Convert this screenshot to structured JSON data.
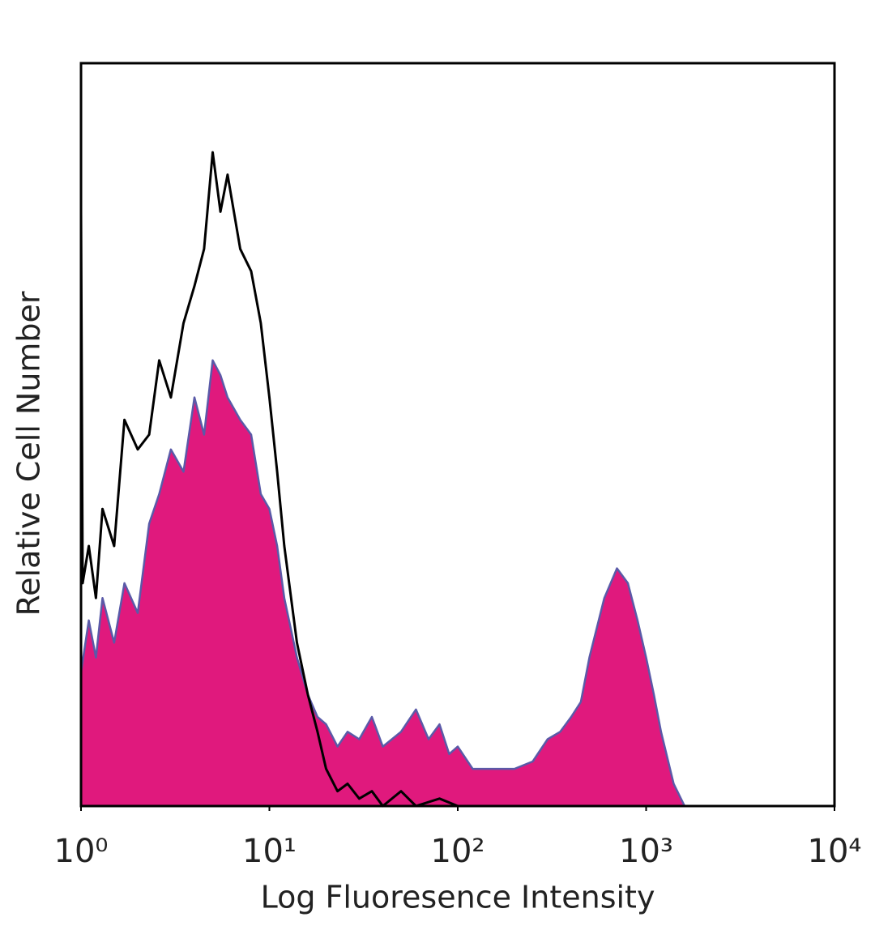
{
  "chart_data": {
    "type": "histogram-overlay",
    "xscale": "log",
    "x_label": "Log Fluoresence Intensity",
    "y_label": "Relative Cell Number",
    "xlim": [
      1,
      10000
    ],
    "ylim": [
      0,
      100
    ],
    "xticks": [
      {
        "value": 1,
        "label": "10⁰"
      },
      {
        "value": 10,
        "label": "10¹"
      },
      {
        "value": 100,
        "label": "10²"
      },
      {
        "value": 1000,
        "label": "10³"
      },
      {
        "value": 10000,
        "label": "10⁴"
      }
    ],
    "series": [
      {
        "fill": "#e0197d",
        "color": "#5a5aa8",
        "filled": true,
        "x": [
          1,
          1.1,
          1.2,
          1.3,
          1.5,
          1.7,
          2,
          2.3,
          2.6,
          3,
          3.5,
          4,
          4.5,
          5,
          5.5,
          6,
          7,
          8,
          9,
          10,
          11,
          12,
          14,
          16,
          18,
          20,
          23,
          26,
          30,
          35,
          40,
          50,
          60,
          70,
          80,
          90,
          100,
          120,
          150,
          200,
          250,
          300,
          350,
          400,
          450,
          500,
          600,
          700,
          800,
          900,
          1000,
          1100,
          1200,
          1400,
          1600
        ],
        "values": [
          18,
          25,
          20,
          28,
          22,
          30,
          26,
          38,
          42,
          48,
          45,
          55,
          50,
          60,
          58,
          55,
          52,
          50,
          42,
          40,
          35,
          28,
          20,
          15,
          12,
          11,
          8,
          10,
          9,
          12,
          8,
          10,
          13,
          9,
          11,
          7,
          8,
          5,
          5,
          5,
          6,
          9,
          10,
          12,
          14,
          20,
          28,
          32,
          30,
          25,
          20,
          15,
          10,
          3,
          0
        ]
      },
      {
        "color": "#000000",
        "filled": false,
        "x": [
          1,
          1.02,
          1.1,
          1.2,
          1.3,
          1.5,
          1.7,
          2,
          2.3,
          2.6,
          3,
          3.5,
          4,
          4.5,
          5,
          5.5,
          6,
          7,
          8,
          9,
          10,
          11,
          12,
          14,
          16,
          18,
          20,
          23,
          26,
          30,
          35,
          40,
          50,
          60,
          80,
          100
        ],
        "values": [
          80,
          30,
          35,
          28,
          40,
          35,
          52,
          48,
          50,
          60,
          55,
          65,
          70,
          75,
          88,
          80,
          85,
          75,
          72,
          65,
          55,
          45,
          35,
          22,
          15,
          10,
          5,
          2,
          3,
          1,
          2,
          0,
          2,
          0,
          1,
          0
        ]
      }
    ]
  }
}
